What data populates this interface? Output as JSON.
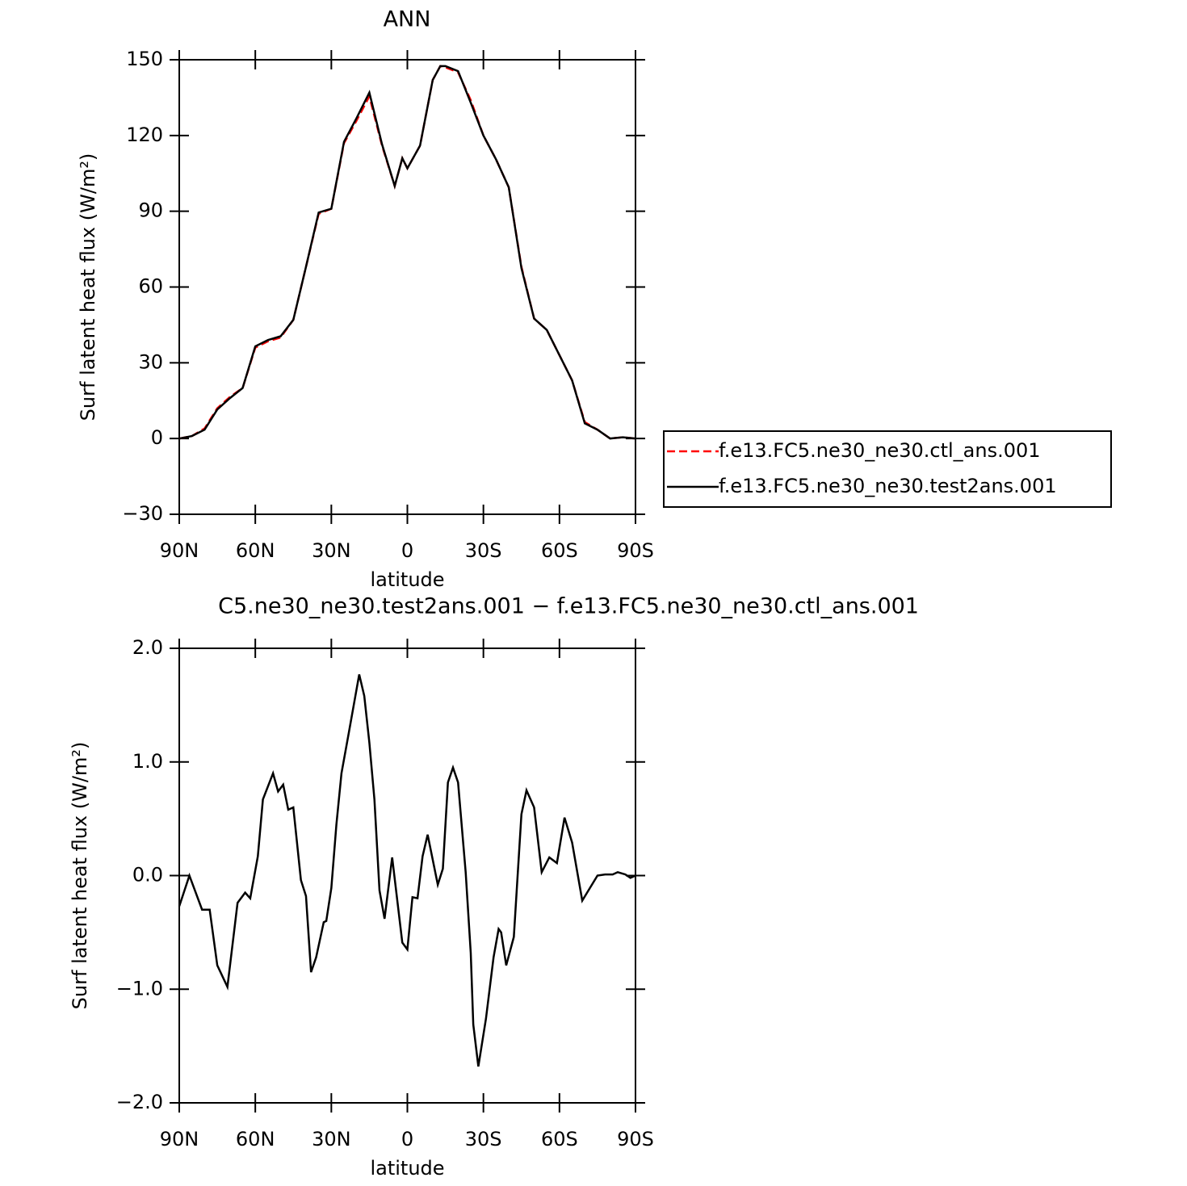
{
  "chart_data": [
    {
      "type": "line",
      "title": "ANN",
      "xlabel": "latitude",
      "ylabel": "Surf latent heat flux (W/m²)",
      "x": [
        90,
        85,
        80,
        75,
        70,
        65,
        60,
        55,
        50,
        45,
        40,
        35,
        30,
        25,
        20,
        15,
        10,
        5,
        2,
        0,
        -5,
        -10,
        -13,
        -15,
        -20,
        -25,
        -30,
        -35,
        -40,
        -45,
        -50,
        -55,
        -60,
        -65,
        -70,
        -75,
        -80,
        -85,
        -90
      ],
      "series": [
        {
          "name": "f.e13.FC5.ne30_ne30.ctl_ans.001",
          "color": "#ff0000",
          "style": "dashed",
          "values": [
            0,
            1,
            4,
            12,
            16.5,
            20,
            36,
            38.5,
            40,
            47,
            68,
            89,
            91,
            117,
            126,
            135.5,
            116,
            100,
            111,
            107,
            116,
            142,
            147.5,
            147,
            145,
            134,
            120,
            110.5,
            99.5,
            68,
            47.5,
            43,
            33,
            23,
            6.5,
            3.5,
            0,
            0.5,
            0
          ]
        },
        {
          "name": "f.e13.FC5.ne30_ne30.test2ans.001",
          "color": "#000000",
          "style": "solid",
          "values": [
            0,
            1,
            3.5,
            11.5,
            16,
            20,
            36.5,
            39,
            40.5,
            47,
            68,
            89.5,
            91,
            117.5,
            127,
            137,
            116.5,
            100,
            111,
            107,
            116,
            142,
            147.5,
            147.5,
            145.5,
            133,
            120,
            110.5,
            99.5,
            67.5,
            47.5,
            43,
            33,
            23,
            6,
            3.5,
            0,
            0.5,
            0
          ]
        }
      ],
      "xlim": [
        90,
        -90
      ],
      "xticks": [
        {
          "value": 90,
          "label": "90N"
        },
        {
          "value": 60,
          "label": "60N"
        },
        {
          "value": 30,
          "label": "30N"
        },
        0,
        {
          "value": -30,
          "label": "30S"
        },
        {
          "value": -60,
          "label": "60S"
        },
        {
          "value": -90,
          "label": "90S"
        }
      ],
      "ylim": [
        -30,
        150
      ],
      "yticks": [
        {
          "value": -30,
          "label": "−30"
        },
        0,
        30,
        60,
        90,
        120,
        150
      ],
      "legend": "right"
    },
    {
      "type": "line",
      "title": "C5.ne30_ne30.test2ans.001 − f.e13.FC5.ne30_ne30.ctl_ans.001",
      "xlabel": "latitude",
      "ylabel": "Surf latent heat flux (W/m²)",
      "x": [
        90,
        86,
        81,
        78,
        75,
        71,
        67,
        64,
        62,
        59,
        57,
        53,
        51,
        49,
        47,
        45,
        42,
        40,
        38,
        36,
        33,
        32,
        30,
        28,
        26,
        23,
        21,
        19,
        17,
        15,
        13,
        11,
        9,
        6,
        2,
        0,
        -2,
        -4,
        -6,
        -8,
        -12,
        -14,
        -16,
        -18,
        -20,
        -23,
        -25,
        -26,
        -28,
        -31,
        -34,
        -36,
        -37,
        -39,
        -42,
        -45,
        -47,
        -50,
        -53,
        -56,
        -59,
        -62,
        -65,
        -69,
        -72,
        -75,
        -78,
        -81,
        -83,
        -86,
        -88,
        -90
      ],
      "series": [
        {
          "color": "#000000",
          "style": "solid",
          "values": [
            -0.27,
            0.0,
            -0.3,
            -0.3,
            -0.79,
            -0.98,
            -0.24,
            -0.15,
            -0.2,
            0.17,
            0.67,
            0.9,
            0.74,
            0.8,
            0.58,
            0.6,
            -0.04,
            -0.18,
            -0.85,
            -0.72,
            -0.41,
            -0.4,
            -0.11,
            0.45,
            0.9,
            1.27,
            1.52,
            1.77,
            1.58,
            1.17,
            0.67,
            -0.13,
            -0.38,
            0.16,
            -0.59,
            -0.65,
            -0.19,
            -0.2,
            0.17,
            0.36,
            -0.08,
            0.06,
            0.82,
            0.95,
            0.82,
            0.03,
            -0.68,
            -1.31,
            -1.68,
            -1.26,
            -0.72,
            -0.47,
            -0.5,
            -0.79,
            -0.54,
            0.54,
            0.75,
            0.6,
            0.03,
            0.16,
            0.11,
            0.51,
            0.29,
            -0.22,
            -0.11,
            0.0,
            0.01,
            0.01,
            0.03,
            0.01,
            -0.02,
            0.0
          ]
        }
      ],
      "xlim": [
        90,
        -90
      ],
      "xticks": [
        {
          "value": 90,
          "label": "90N"
        },
        {
          "value": 60,
          "label": "60N"
        },
        {
          "value": 30,
          "label": "30N"
        },
        0,
        {
          "value": -30,
          "label": "30S"
        },
        {
          "value": -60,
          "label": "60S"
        },
        {
          "value": -90,
          "label": "90S"
        }
      ],
      "ylim": [
        -2,
        2
      ],
      "yticks": [
        {
          "value": -2,
          "label": "−2.0"
        },
        {
          "value": -1,
          "label": "−1.0"
        },
        {
          "value": 0,
          "label": "0.0"
        },
        {
          "value": 1,
          "label": "1.0"
        },
        {
          "value": 2,
          "label": "2.0"
        }
      ]
    }
  ]
}
